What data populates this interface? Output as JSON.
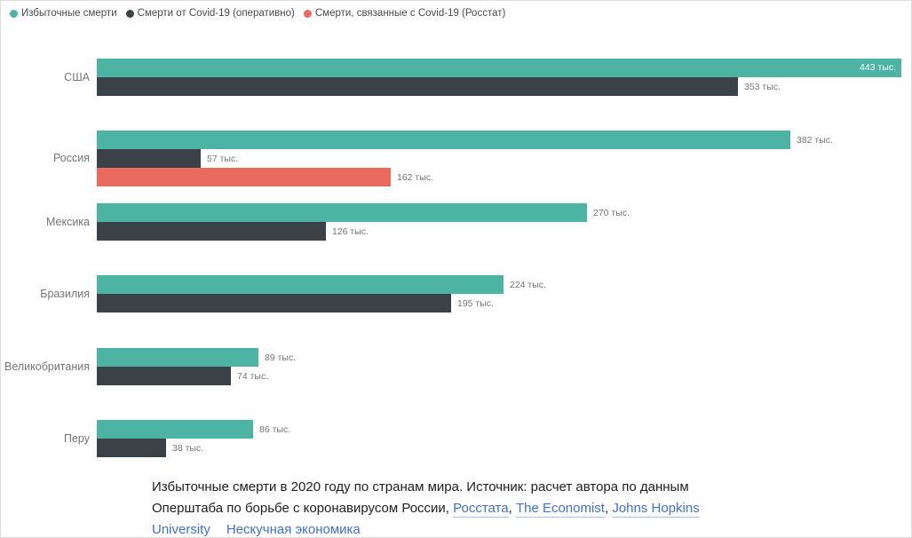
{
  "legend": {
    "items": [
      {
        "label": "Избыточные смерти",
        "color": "#4db4a3"
      },
      {
        "label": "Смерти от Covid-19 (оперативно)",
        "color": "#3a4147"
      },
      {
        "label": "Смерти, связанные с Covid-19 (Росстат)",
        "color": "#ea6a5f"
      }
    ]
  },
  "chart_data": {
    "type": "bar",
    "orientation": "horizontal",
    "unit": "тыс.",
    "max_value": 443,
    "grid": false,
    "legend_position": "top-left",
    "series_names": [
      "Избыточные смерти",
      "Смерти от Covid-19 (оперативно)",
      "Смерти, связанные с Covid-19 (Росстат)"
    ],
    "colors": {
      "excess": "#4db4a3",
      "covid_reported": "#3a4147",
      "covid_rosstat": "#ea6a5f"
    },
    "groups": [
      {
        "country": "США",
        "bars": [
          {
            "series": "excess",
            "value": 443,
            "label": "443 тыс.",
            "color": "#4db4a3",
            "inside": true
          },
          {
            "series": "covid_reported",
            "value": 353,
            "label": "353 тыс.",
            "color": "#3a4147"
          }
        ]
      },
      {
        "country": "Россия",
        "bars": [
          {
            "series": "excess",
            "value": 382,
            "label": "382 тыс.",
            "color": "#4db4a3"
          },
          {
            "series": "covid_reported",
            "value": 57,
            "label": "57 тыс.",
            "color": "#3a4147"
          },
          {
            "series": "covid_rosstat",
            "value": 162,
            "label": "162 тыс.",
            "color": "#ea6a5f"
          }
        ]
      },
      {
        "country": "Мексика",
        "bars": [
          {
            "series": "excess",
            "value": 270,
            "label": "270 тыс.",
            "color": "#4db4a3"
          },
          {
            "series": "covid_reported",
            "value": 126,
            "label": "126 тыс.",
            "color": "#3a4147"
          }
        ]
      },
      {
        "country": "Бразилия",
        "bars": [
          {
            "series": "excess",
            "value": 224,
            "label": "224 тыс.",
            "color": "#4db4a3"
          },
          {
            "series": "covid_reported",
            "value": 195,
            "label": "195 тыс.",
            "color": "#3a4147"
          }
        ]
      },
      {
        "country": "Великобритания",
        "bars": [
          {
            "series": "excess",
            "value": 89,
            "label": "89 тыс.",
            "color": "#4db4a3"
          },
          {
            "series": "covid_reported",
            "value": 74,
            "label": "74 тыс.",
            "color": "#3a4147"
          }
        ]
      },
      {
        "country": "Перу",
        "bars": [
          {
            "series": "excess",
            "value": 86,
            "label": "86 тыс.",
            "color": "#4db4a3"
          },
          {
            "series": "covid_reported",
            "value": 38,
            "label": "38 тыс.",
            "color": "#3a4147"
          }
        ]
      }
    ],
    "title": "Избыточные смерти в 2020 году по странам мира"
  },
  "caption": {
    "segments": [
      {
        "text": "Избыточные смерти в 2020 году по странам мира. Источник: расчет автора по данным Оперштаба по борьбе с коронавирусом России, "
      },
      {
        "text": "Росстата",
        "link": true
      },
      {
        "text": ", "
      },
      {
        "text": "The Economist",
        "link": true
      },
      {
        "text": ", "
      },
      {
        "text": "Johns Hopkins University",
        "link": true
      },
      {
        "gap": true
      },
      {
        "text": "Нескучная экономика",
        "link": true
      }
    ],
    "link_color": "#4170d4"
  }
}
